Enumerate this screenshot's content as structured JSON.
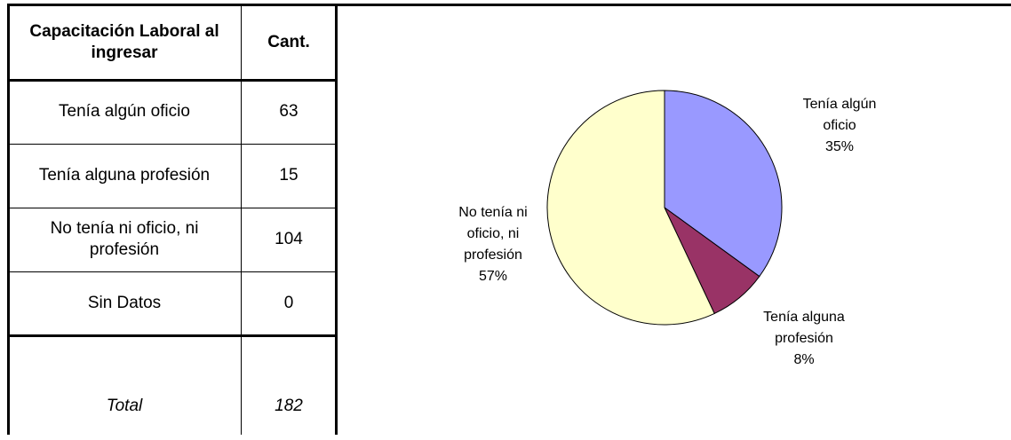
{
  "table": {
    "header": [
      "Capacitación Laboral al ingresar",
      "Cant."
    ],
    "rows": [
      [
        "Tenía algún oficio",
        "63"
      ],
      [
        "Tenía alguna profesión",
        "15"
      ],
      [
        "No tenía ni oficio, ni profesión",
        "104"
      ],
      [
        "Sin Datos",
        "0"
      ]
    ],
    "total": [
      "Total",
      "182"
    ]
  },
  "chart_data": {
    "type": "pie",
    "categories": [
      "Tenía algún oficio",
      "Tenía alguna profesión",
      "No tenía ni oficio, ni profesión"
    ],
    "values": [
      35,
      8,
      57
    ],
    "value_labels": [
      "35%",
      "8%",
      "57%"
    ],
    "colors": [
      "#9999ff",
      "#993366",
      "#ffffcc"
    ]
  }
}
